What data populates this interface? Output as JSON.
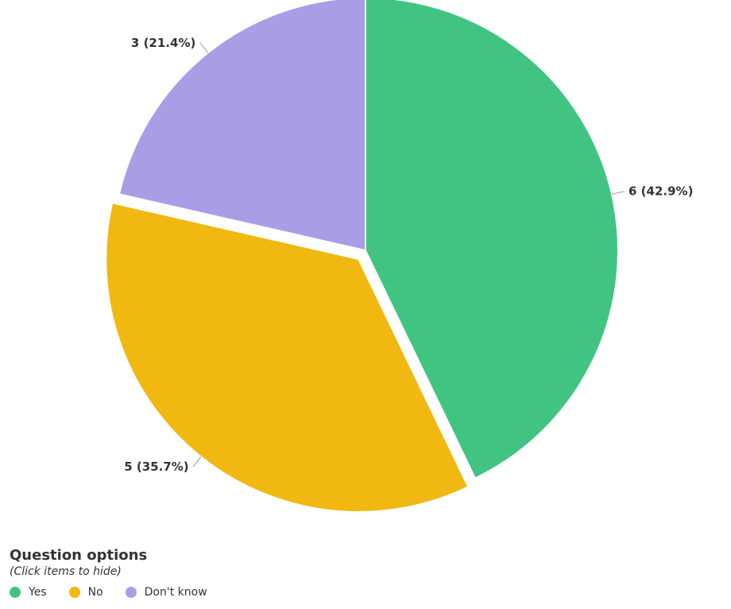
{
  "chart_data": {
    "type": "pie",
    "categories": [
      "Yes",
      "No",
      "Don't know"
    ],
    "values": [
      6,
      5,
      3
    ],
    "percentages": [
      42.9,
      35.7,
      21.4
    ],
    "data_labels": [
      "6 (42.9%)",
      "5 (35.7%)",
      "3 (21.4%)"
    ],
    "colors": [
      "#41c482",
      "#f0b810",
      "#a99ee5"
    ],
    "exploded": [
      false,
      true,
      false
    ],
    "title": "",
    "legend_position": "bottom-left"
  },
  "legend": {
    "title": "Question options",
    "subtitle": "(Click items to hide)",
    "items": [
      "Yes",
      "No",
      "Don't know"
    ]
  }
}
